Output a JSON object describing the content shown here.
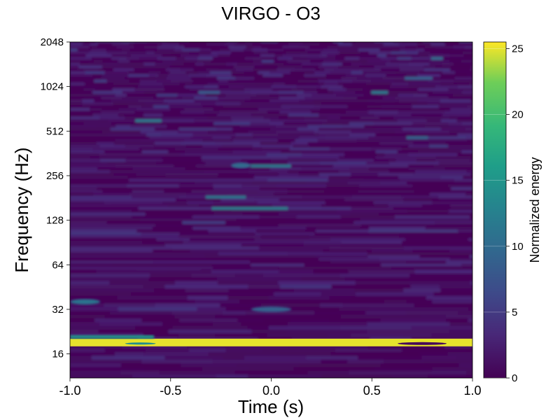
{
  "chart_data": {
    "type": "heatmap",
    "title": "VIRGO - O3",
    "xlabel": "Time (s)",
    "ylabel": "Frequency (Hz)",
    "xlim": [
      -1.0,
      1.0
    ],
    "x_ticks": [
      "-1.0",
      "-0.5",
      "0.0",
      "0.5",
      "1.0"
    ],
    "y_scale": "log2",
    "ylim": [
      11,
      2048
    ],
    "y_ticks": [
      "16",
      "32",
      "64",
      "128",
      "256",
      "512",
      "1024",
      "2048"
    ],
    "colorbar": {
      "label": "Normalized energy",
      "range": [
        0,
        25.5
      ],
      "ticks": [
        "0",
        "5",
        "10",
        "15",
        "20",
        "25"
      ],
      "colormap": "viridis"
    },
    "features": [
      {
        "description": "persistent high-energy line",
        "frequency_hz": 19,
        "t_start": -1.0,
        "t_end": 1.0,
        "energy": 25
      },
      {
        "description": "moderate band",
        "frequency_hz": 36,
        "t_start": -1.0,
        "t_end": -0.85,
        "energy": 11
      },
      {
        "description": "moderate blob",
        "frequency_hz": 32,
        "t_start": -0.1,
        "t_end": 0.1,
        "energy": 9
      },
      {
        "description": "moderate blob",
        "frequency_hz": 300,
        "t_start": -0.2,
        "t_end": -0.1,
        "energy": 10
      }
    ]
  }
}
